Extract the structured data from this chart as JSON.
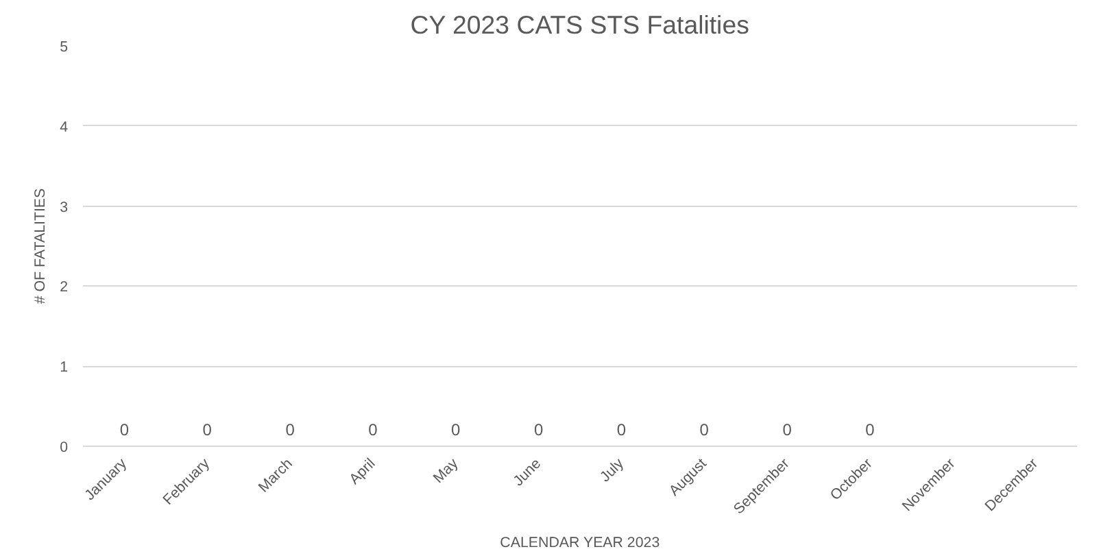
{
  "chart_data": {
    "type": "bar",
    "title": "CY 2023 CATS STS Fatalities",
    "xlabel": "CALENDAR YEAR 2023",
    "ylabel": "# OF FATALITIES",
    "categories": [
      "January",
      "February",
      "March",
      "April",
      "May",
      "June",
      "July",
      "August",
      "September",
      "October",
      "November",
      "December"
    ],
    "values": [
      0,
      0,
      0,
      0,
      0,
      0,
      0,
      0,
      0,
      0,
      null,
      null
    ],
    "ylim": [
      0,
      5
    ],
    "yticks": [
      0,
      1,
      2,
      3,
      4,
      5
    ],
    "grid": "y",
    "data_labels": true
  }
}
